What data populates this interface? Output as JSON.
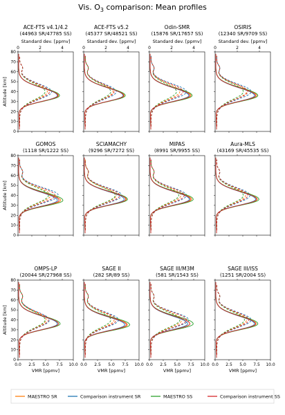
{
  "figure": {
    "title": "Vis. O",
    "title_sub": "3",
    "title_rest": " comparison: Mean profiles",
    "ylabel": "Altitude [km]",
    "xlabel_bottom": "VMR [ppmv]",
    "xlabel_top": "Standard dev. [ppmv]"
  },
  "legend": [
    {
      "label": "MAESTRO SR",
      "color": "#ff7f0e"
    },
    {
      "label": "Comparison instrument SR",
      "color": "#1f77b4"
    },
    {
      "label": "MAESTRO SS",
      "color": "#2ca02c"
    },
    {
      "label": "Comparison instrument SS",
      "color": "#d62728"
    }
  ],
  "chart_data": {
    "type": "line",
    "title": "Vis. O3 comparison: Mean profiles",
    "xlabel": "VMR [ppmv]",
    "x2label": "Standard dev. [ppmv]",
    "ylabel": "Altitude [km]",
    "xlim": [
      0,
      10
    ],
    "x2lim": [
      0,
      5
    ],
    "ylim": [
      0,
      80
    ],
    "x_ticks": [
      "0.0",
      "2.5",
      "5.0",
      "7.5",
      "10.0"
    ],
    "x2_ticks": [
      "0",
      "2",
      "4"
    ],
    "y_ticks": [
      "0",
      "10",
      "20",
      "30",
      "40",
      "50",
      "60",
      "70",
      "80"
    ],
    "linestyles": {
      "solid": "mean profile (VMR)",
      "dashed": "standard deviation"
    },
    "panels": [
      {
        "name": "ACE-FTS v4.1/4.2",
        "counts": "(44963 SR/47785 SS)",
        "peak": [
          7.2,
          7.0,
          7.4,
          7.1
        ],
        "zpeak": 36,
        "sd": [
          2.5,
          2.9,
          2.3,
          2.7
        ]
      },
      {
        "name": "ACE-FTS v5.2",
        "counts": "(45377 SR/48521 SS)",
        "peak": [
          7.2,
          7.0,
          7.4,
          7.1
        ],
        "zpeak": 36,
        "sd": [
          2.5,
          2.8,
          2.3,
          2.6
        ]
      },
      {
        "name": "Odin-SMR",
        "counts": "(15876 SR/17657 SS)",
        "peak": [
          7.4,
          7.0,
          7.6,
          7.2
        ],
        "zpeak": 36,
        "sd": [
          2.6,
          3.2,
          2.3,
          2.9
        ]
      },
      {
        "name": "OSIRIS",
        "counts": "(12340 SR/9709 SS)",
        "peak": [
          7.4,
          7.0,
          7.6,
          7.2
        ],
        "zpeak": 36,
        "sd": [
          2.7,
          3.1,
          2.4,
          2.8
        ]
      },
      {
        "name": "GOMOS",
        "counts": "(1118 SR/1222 SS)",
        "peak": [
          7.6,
          7.0,
          8.0,
          7.3
        ],
        "zpeak": 35,
        "sd": [
          2.8,
          3.5,
          2.6,
          3.2
        ]
      },
      {
        "name": "SCIAMACHY",
        "counts": "(9296 SR/7272 SS)",
        "peak": [
          7.6,
          7.2,
          7.8,
          7.5
        ],
        "zpeak": 36,
        "sd": [
          2.8,
          3.3,
          2.7,
          3.1
        ]
      },
      {
        "name": "MIPAS",
        "counts": "(8991 SR/9955 SS)",
        "peak": [
          7.5,
          7.1,
          7.8,
          7.3
        ],
        "zpeak": 36,
        "sd": [
          2.7,
          3.2,
          2.5,
          3.0
        ]
      },
      {
        "name": "Aura-MLS",
        "counts": "(43169 SR/45535 SS)",
        "peak": [
          7.5,
          7.2,
          7.8,
          7.4
        ],
        "zpeak": 36,
        "sd": [
          2.6,
          3.0,
          2.4,
          2.8
        ]
      },
      {
        "name": "OMPS-LP",
        "counts": "(20044 SR/27968 SS)",
        "peak": [
          7.2,
          7.0,
          7.5,
          7.2
        ],
        "zpeak": 36,
        "sd": [
          2.4,
          2.7,
          2.3,
          2.6
        ]
      },
      {
        "name": "SAGE II",
        "counts": "(282 SR/89 SS)",
        "peak": [
          7.8,
          7.3,
          8.2,
          7.6
        ],
        "zpeak": 35,
        "sd": [
          2.6,
          3.0,
          2.3,
          2.8
        ]
      },
      {
        "name": "SAGE III/M3M",
        "counts": "(581 SR/1543 SS)",
        "peak": [
          7.2,
          6.8,
          7.8,
          7.2
        ],
        "zpeak": 36,
        "sd": [
          2.8,
          3.4,
          2.6,
          3.2
        ]
      },
      {
        "name": "SAGE III/ISS",
        "counts": "(1251 SR/2004 SS)",
        "peak": [
          7.3,
          7.0,
          7.6,
          7.2
        ],
        "zpeak": 36,
        "sd": [
          2.7,
          3.1,
          2.5,
          2.9
        ]
      }
    ]
  }
}
